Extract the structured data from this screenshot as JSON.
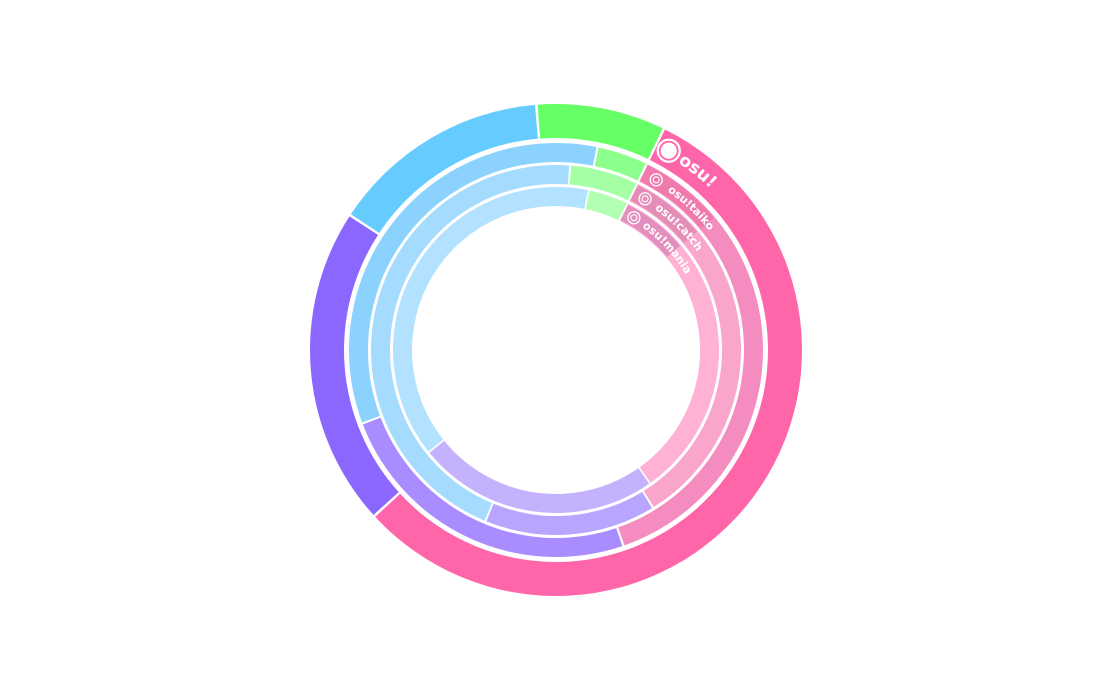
{
  "chart_data": {
    "type": "sunburst",
    "rings": [
      {
        "name": "osu!",
        "icon": "osu-circle-icon",
        "label_color": "#ff66aa",
        "segments": [
          {
            "value": 56,
            "color": "#ff66aa"
          },
          {
            "value": 21,
            "color": "#8b66ff"
          },
          {
            "value": 14.5,
            "color": "#66ccff"
          },
          {
            "value": 8.5,
            "color": "#66ff66"
          }
        ]
      },
      {
        "name": "osu!taiko",
        "icon": "taiko-drum-icon",
        "label_color": "#ee77aa",
        "segments": [
          {
            "value": 37.5,
            "color": "#f58cbf"
          },
          {
            "value": 24.5,
            "color": "#a98cff"
          },
          {
            "value": 34,
            "color": "#8cd2ff"
          },
          {
            "value": 4,
            "color": "#8cff8c"
          }
        ]
      },
      {
        "name": "osu!catch",
        "icon": "catch-fruit-icon",
        "label_color": "#e088b5",
        "segments": [
          {
            "value": 34,
            "color": "#f9a5cc"
          },
          {
            "value": 15,
            "color": "#b7a5ff"
          },
          {
            "value": 45,
            "color": "#a5dbff"
          },
          {
            "value": 6,
            "color": "#a5ffa5"
          }
        ]
      },
      {
        "name": "osu!mania",
        "icon": "mania-keys-icon",
        "label_color": "#dd88bb",
        "segments": [
          {
            "value": 33,
            "color": "#ffb2d4"
          },
          {
            "value": 24,
            "color": "#c4b2ff"
          },
          {
            "value": 39,
            "color": "#b2e2ff"
          },
          {
            "value": 4,
            "color": "#b2ffb2"
          }
        ]
      }
    ]
  }
}
